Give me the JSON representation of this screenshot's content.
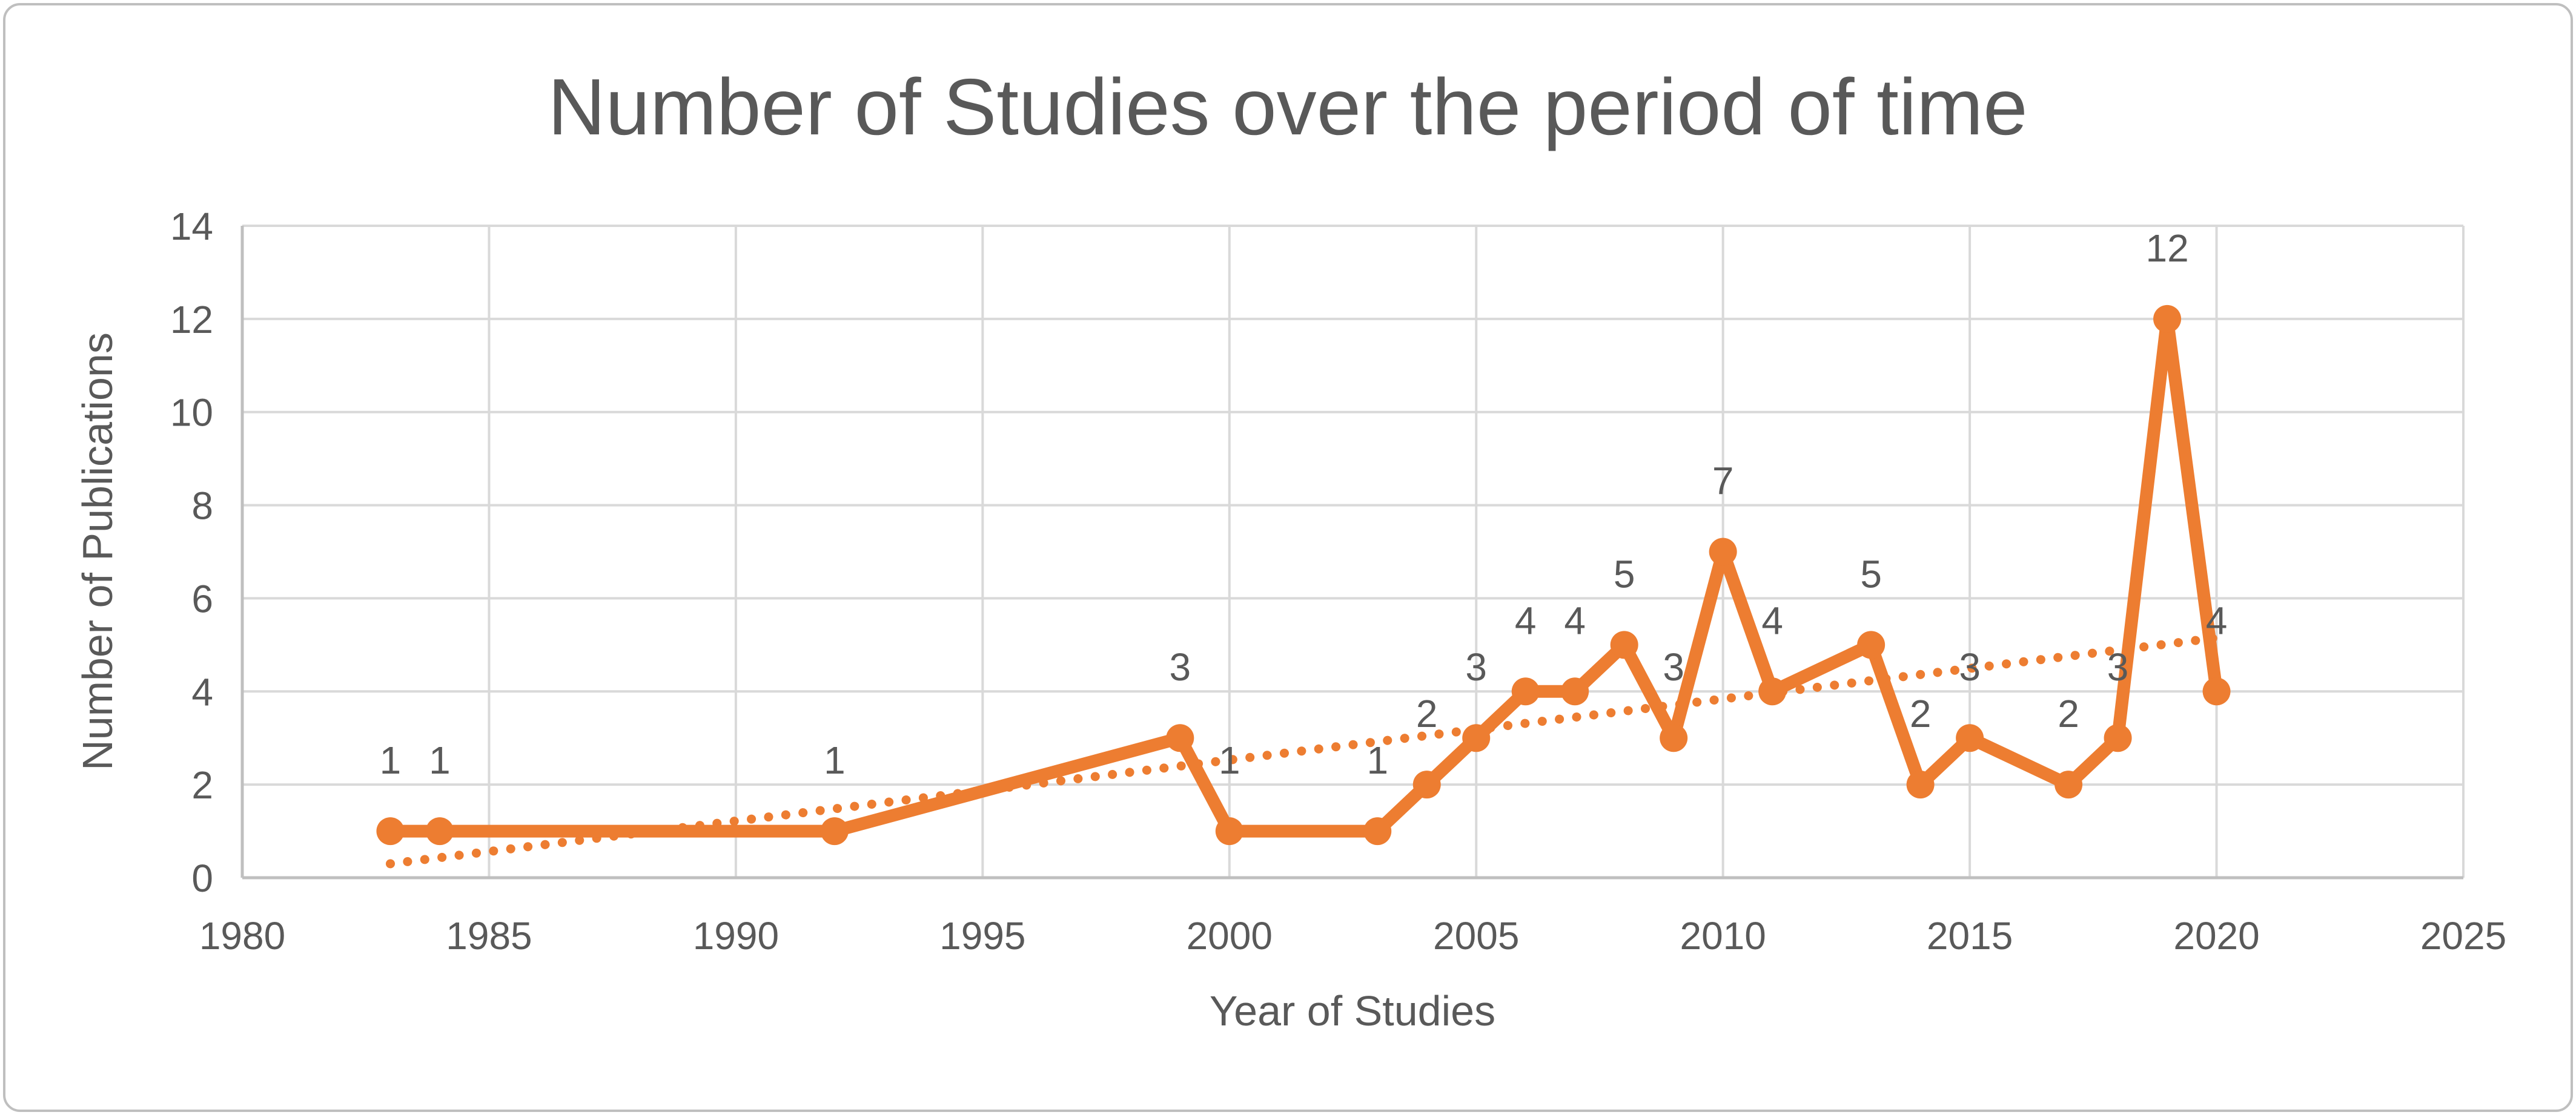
{
  "chart_data": {
    "type": "line",
    "title": "Number of Studies over the period of time",
    "xlabel": "Year of Studies",
    "ylabel": "Number of Publications",
    "x": [
      1983,
      1984,
      1992,
      1999,
      2000,
      2003,
      2004,
      2005,
      2006,
      2007,
      2008,
      2009,
      2010,
      2011,
      2013,
      2014,
      2015,
      2017,
      2018,
      2019,
      2020
    ],
    "y": [
      1,
      1,
      1,
      3,
      1,
      1,
      2,
      3,
      4,
      4,
      5,
      3,
      7,
      4,
      5,
      2,
      3,
      2,
      3,
      12,
      4
    ],
    "data_labels_visible": true,
    "marker": "circle",
    "xlim": [
      1980,
      2025
    ],
    "ylim": [
      0,
      14
    ],
    "x_ticks": [
      1980,
      1985,
      1990,
      1995,
      2000,
      2005,
      2010,
      2015,
      2020,
      2025
    ],
    "y_ticks": [
      0,
      2,
      4,
      6,
      8,
      10,
      12,
      14
    ],
    "grid": "major-horizontal-and-vertical",
    "legend": "none",
    "trendline": {
      "kind": "linear-dotted",
      "x1": 1983,
      "y1": 0.3,
      "x2": 2020,
      "y2": 5.15
    },
    "colors": {
      "series": "#ED7D31",
      "gridline": "#D9D9D9",
      "axis": "#BFBFBF",
      "text": "#595959",
      "background": "#FFFFFF",
      "frame_border": "#BFBFBF"
    }
  }
}
